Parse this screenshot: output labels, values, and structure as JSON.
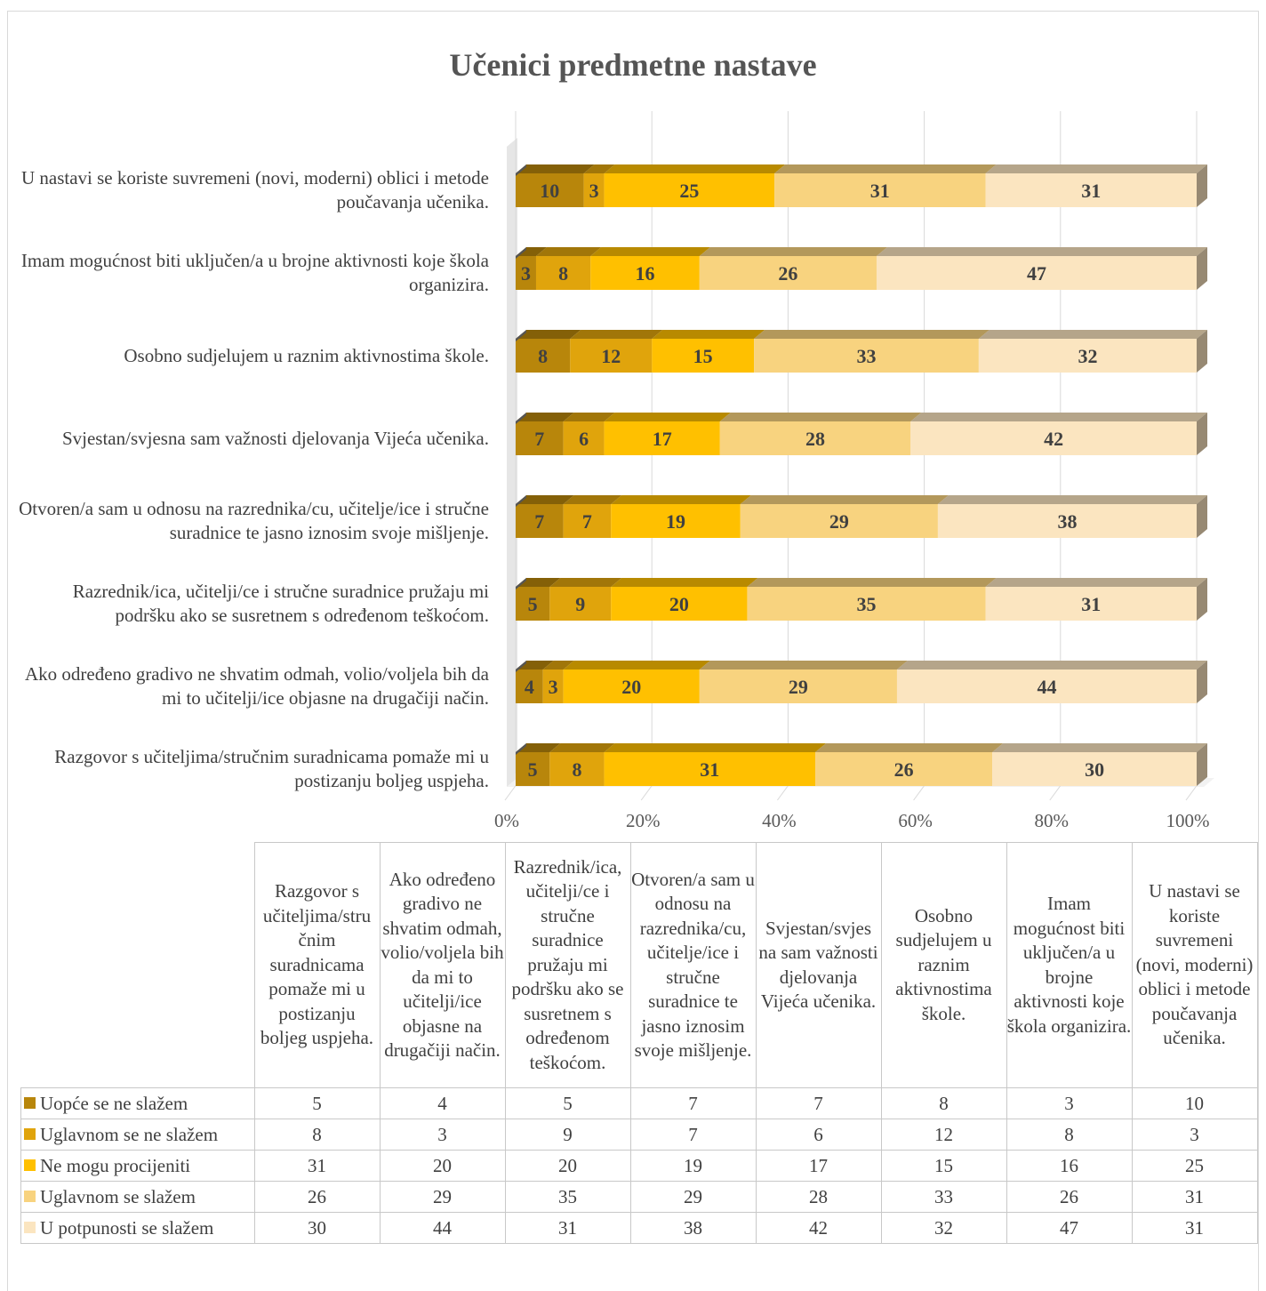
{
  "chart_data": {
    "type": "bar",
    "orientation": "horizontal",
    "stacked": "percent",
    "title": "Učenici predmetne nastave",
    "categories": [
      "Razgovor s učiteljima/stručnim suradnicama pomaže mi u postizanju boljeg uspjeha.",
      "Ako određeno gradivo ne shvatim odmah, volio/voljela bih da mi to učitelji/ice objasne na drugačiji način.",
      "Razrednik/ica, učitelji/ce i stručne suradnice pružaju mi podršku ako se susretnem s određenom teškoćom.",
      "Otvoren/a sam u odnosu na razrednika/cu, učitelje/ice i stručne suradnice te jasno iznosim svoje mišljenje.",
      "Svjestan/svjesna sam važnosti djelovanja Vijeća učenika.",
      "Osobno sudjelujem u raznim aktivnostima škole.",
      "Imam mogućnost biti uključen/a u brojne aktivnosti koje škola organizira.",
      "U nastavi se koriste suvremeni (novi, moderni) oblici i metode poučavanja učenika."
    ],
    "series": [
      {
        "name": "Uopće se ne slažem",
        "color": "#b8860b",
        "values": [
          5,
          4,
          5,
          7,
          7,
          8,
          3,
          10
        ]
      },
      {
        "name": "Uglavnom se ne slažem",
        "color": "#e0a40c",
        "values": [
          8,
          3,
          9,
          7,
          6,
          12,
          8,
          3
        ]
      },
      {
        "name": "Ne mogu procijeniti",
        "color": "#ffc000",
        "values": [
          31,
          20,
          20,
          19,
          17,
          15,
          16,
          25
        ]
      },
      {
        "name": "Uglavnom se slažem",
        "color": "#f8d37f",
        "values": [
          26,
          29,
          35,
          29,
          28,
          33,
          26,
          31
        ]
      },
      {
        "name": "U potpunosti se slažem",
        "color": "#fbe5c0",
        "values": [
          30,
          44,
          31,
          38,
          42,
          32,
          47,
          31
        ]
      }
    ],
    "x_ticks": [
      "0%",
      "20%",
      "40%",
      "60%",
      "80%",
      "100%"
    ],
    "xlim": [
      0,
      100
    ],
    "grid": true,
    "data_table": true
  },
  "table": {
    "column_headers": [
      "Razgovor s učiteljima/stru čnim suradnicama pomaže mi u postizanju boljeg uspjeha.",
      "Ako određeno gradivo ne shvatim odmah, volio/voljela bih da mi to učitelji/ice objasne na drugačiji način.",
      "Razrednik/ica, učitelji/ce i stručne suradnice pružaju mi podršku ako se susretnem s određenom teškoćom.",
      "Otvoren/a sam u odnosu na razrednika/cu, učitelje/ice i stručne suradnice te jasno iznosim svoje mišljenje.",
      "Svjestan/svjes na sam važnosti djelovanja Vijeća učenika.",
      "Osobno sudjelujem u raznim aktivnostima škole.",
      "Imam mogućnost biti uključen/a u brojne aktivnosti koje škola organizira.",
      "U nastavi se koriste suvremeni (novi, moderni) oblici i metode poučavanja učenika."
    ]
  }
}
